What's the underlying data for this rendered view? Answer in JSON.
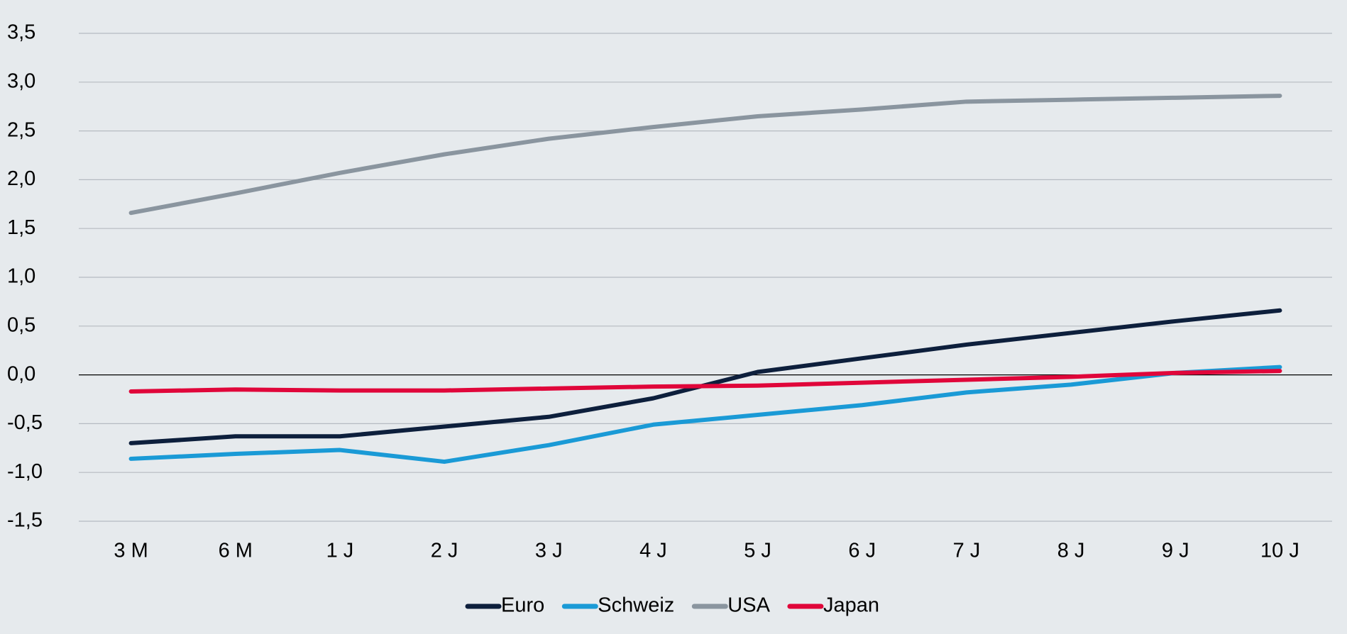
{
  "chart_data": {
    "type": "line",
    "categories": [
      "3 M",
      "6 M",
      "1 J",
      "2 J",
      "3 J",
      "4 J",
      "5 J",
      "6 J",
      "7 J",
      "8 J",
      "9 J",
      "10 J"
    ],
    "series": [
      {
        "name": "Euro",
        "color": "#0d1f3c",
        "values": [
          -0.7,
          -0.63,
          -0.63,
          -0.53,
          -0.43,
          -0.24,
          0.03,
          0.17,
          0.31,
          0.43,
          0.55,
          0.66
        ]
      },
      {
        "name": "Schweiz",
        "color": "#1a9ad6",
        "values": [
          -0.86,
          -0.81,
          -0.77,
          -0.89,
          -0.72,
          -0.51,
          -0.41,
          -0.31,
          -0.18,
          -0.1,
          0.02,
          0.08
        ]
      },
      {
        "name": "USA",
        "color": "#8a959f",
        "values": [
          1.66,
          1.86,
          2.07,
          2.26,
          2.42,
          2.54,
          2.65,
          2.72,
          2.8,
          2.82,
          2.84,
          2.86
        ]
      },
      {
        "name": "Japan",
        "color": "#e0063a",
        "values": [
          -0.17,
          -0.15,
          -0.16,
          -0.16,
          -0.14,
          -0.12,
          -0.11,
          -0.08,
          -0.05,
          -0.02,
          0.02,
          0.04
        ]
      }
    ],
    "ylim": [
      -1.5,
      3.5
    ],
    "yticks": [
      {
        "value": -1.5,
        "label": "-1,5"
      },
      {
        "value": -1,
        "label": "-1,0"
      },
      {
        "value": -0.5,
        "label": "-0,5"
      },
      {
        "value": 0,
        "label": "0,0"
      },
      {
        "value": 0.5,
        "label": "0,5"
      },
      {
        "value": 1,
        "label": "1,0"
      },
      {
        "value": 1.5,
        "label": "1,5"
      },
      {
        "value": 2,
        "label": "2,0"
      },
      {
        "value": 2.5,
        "label": "2,5"
      },
      {
        "value": 3,
        "label": "3,0"
      },
      {
        "value": 3.5,
        "label": "3,5"
      }
    ],
    "grid": true,
    "legend": "bottom"
  }
}
